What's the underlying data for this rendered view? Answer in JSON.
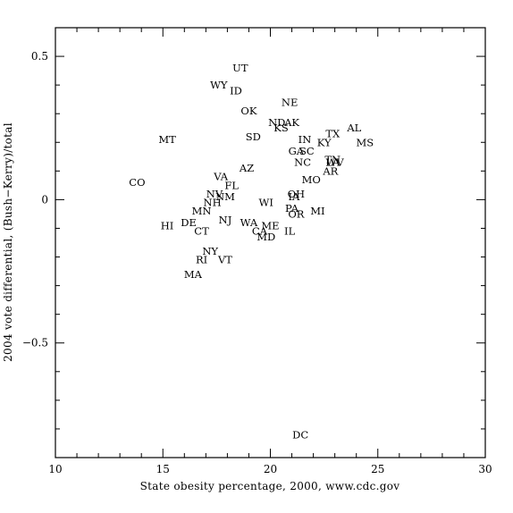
{
  "chart_data": {
    "type": "scatter",
    "title": "",
    "xlabel": "State obesity percentage, 2000, www.cdc.gov",
    "ylabel": "2004 vote differential, (Bush−Kerry)/total",
    "xlim": [
      10,
      30
    ],
    "ylim": [
      -0.9,
      0.6
    ],
    "xticks": [
      10,
      15,
      20,
      25,
      30
    ],
    "xtick_labels": [
      "10",
      "15",
      "20",
      "25",
      "30"
    ],
    "yticks": [
      -0.5,
      0,
      0.5
    ],
    "ytick_labels": [
      "−0.5",
      "0",
      "0.5"
    ],
    "x_minor_step": 1,
    "y_minor_step": 0.1,
    "grid": false,
    "points": [
      {
        "label": "UT",
        "x": 18.6,
        "y": 0.46
      },
      {
        "label": "WY",
        "x": 17.6,
        "y": 0.4
      },
      {
        "label": "ID",
        "x": 18.4,
        "y": 0.38
      },
      {
        "label": "NE",
        "x": 20.9,
        "y": 0.34
      },
      {
        "label": "OK",
        "x": 19.0,
        "y": 0.31
      },
      {
        "label": "ND",
        "x": 20.3,
        "y": 0.27
      },
      {
        "label": "AK",
        "x": 21.0,
        "y": 0.27
      },
      {
        "label": "KS",
        "x": 20.5,
        "y": 0.25
      },
      {
        "label": "AL",
        "x": 23.9,
        "y": 0.25
      },
      {
        "label": "TX",
        "x": 22.9,
        "y": 0.23
      },
      {
        "label": "MT",
        "x": 15.2,
        "y": 0.21
      },
      {
        "label": "SD",
        "x": 19.2,
        "y": 0.22
      },
      {
        "label": "MS",
        "x": 24.4,
        "y": 0.2
      },
      {
        "label": "IN",
        "x": 21.6,
        "y": 0.21
      },
      {
        "label": "KY",
        "x": 22.5,
        "y": 0.2
      },
      {
        "label": "GA",
        "x": 21.2,
        "y": 0.17
      },
      {
        "label": "SC",
        "x": 21.7,
        "y": 0.17
      },
      {
        "label": "TN",
        "x": 22.9,
        "y": 0.14
      },
      {
        "label": "LA",
        "x": 22.9,
        "y": 0.13
      },
      {
        "label": "WV",
        "x": 23.0,
        "y": 0.13
      },
      {
        "label": "NC",
        "x": 21.5,
        "y": 0.13
      },
      {
        "label": "AR",
        "x": 22.8,
        "y": 0.1
      },
      {
        "label": "AZ",
        "x": 18.9,
        "y": 0.11
      },
      {
        "label": "VA",
        "x": 17.7,
        "y": 0.08
      },
      {
        "label": "MO",
        "x": 21.9,
        "y": 0.07
      },
      {
        "label": "CO",
        "x": 13.8,
        "y": 0.06
      },
      {
        "label": "FL",
        "x": 18.2,
        "y": 0.05
      },
      {
        "label": "NV",
        "x": 17.4,
        "y": 0.02
      },
      {
        "label": "OH",
        "x": 21.2,
        "y": 0.02
      },
      {
        "label": "NM",
        "x": 17.9,
        "y": 0.01
      },
      {
        "label": "IA",
        "x": 21.1,
        "y": 0.01
      },
      {
        "label": "NH",
        "x": 17.3,
        "y": -0.01
      },
      {
        "label": "WI",
        "x": 19.8,
        "y": -0.01
      },
      {
        "label": "PA",
        "x": 21.0,
        "y": -0.03
      },
      {
        "label": "MN",
        "x": 16.8,
        "y": -0.04
      },
      {
        "label": "MI",
        "x": 22.2,
        "y": -0.04
      },
      {
        "label": "OR",
        "x": 21.2,
        "y": -0.05
      },
      {
        "label": "NJ",
        "x": 17.9,
        "y": -0.07
      },
      {
        "label": "WA",
        "x": 19.0,
        "y": -0.08
      },
      {
        "label": "HI",
        "x": 15.2,
        "y": -0.09
      },
      {
        "label": "DE",
        "x": 16.2,
        "y": -0.08
      },
      {
        "label": "ME",
        "x": 20.0,
        "y": -0.09
      },
      {
        "label": "CT",
        "x": 16.8,
        "y": -0.11
      },
      {
        "label": "CA",
        "x": 19.5,
        "y": -0.11
      },
      {
        "label": "IL",
        "x": 20.9,
        "y": -0.11
      },
      {
        "label": "MD",
        "x": 19.8,
        "y": -0.13
      },
      {
        "label": "NY",
        "x": 17.2,
        "y": -0.18
      },
      {
        "label": "RI",
        "x": 16.8,
        "y": -0.21
      },
      {
        "label": "VT",
        "x": 17.9,
        "y": -0.21
      },
      {
        "label": "MA",
        "x": 16.4,
        "y": -0.26
      },
      {
        "label": "DC",
        "x": 21.4,
        "y": -0.82
      }
    ]
  }
}
